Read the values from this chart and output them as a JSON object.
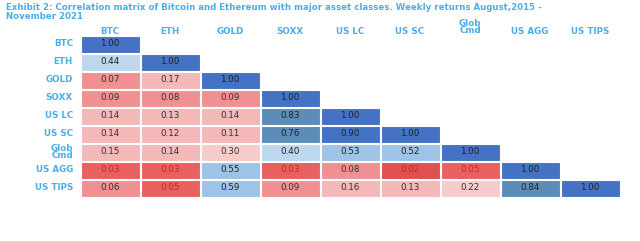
{
  "title_line1": "Exhibit 2: Correlation matrix of Bitcoin and Ethereum with major asset classes. Weekly returns August,2015 -",
  "title_line2": "November 2021",
  "title_color": "#4BAEE8",
  "col_labels": [
    "BTC",
    "ETH",
    "GOLD",
    "SOXX",
    "US LC",
    "US SC",
    "Glob\nCmd",
    "US AGG",
    "US TIPS"
  ],
  "row_labels": [
    "BTC",
    "ETH",
    "GOLD",
    "SOXX",
    "US LC",
    "US SC",
    "Glob\nCmd",
    "US AGG",
    "US TIPS"
  ],
  "matrix": [
    [
      1.0,
      null,
      null,
      null,
      null,
      null,
      null,
      null,
      null
    ],
    [
      0.44,
      1.0,
      null,
      null,
      null,
      null,
      null,
      null,
      null
    ],
    [
      0.07,
      0.17,
      1.0,
      null,
      null,
      null,
      null,
      null,
      null
    ],
    [
      0.09,
      0.08,
      0.09,
      1.0,
      null,
      null,
      null,
      null,
      null
    ],
    [
      0.14,
      0.13,
      0.14,
      0.83,
      1.0,
      null,
      null,
      null,
      null
    ],
    [
      0.14,
      0.12,
      0.11,
      0.76,
      0.9,
      1.0,
      null,
      null,
      null
    ],
    [
      0.15,
      0.14,
      0.3,
      0.4,
      0.53,
      0.52,
      1.0,
      null,
      null
    ],
    [
      0.03,
      0.03,
      0.55,
      0.03,
      0.08,
      0.02,
      0.05,
      1.0,
      null
    ],
    [
      0.06,
      0.05,
      0.59,
      0.09,
      0.16,
      0.13,
      0.22,
      0.84,
      1.0
    ]
  ],
  "header_color": "#4BAEE8",
  "background_color": "#FFFFFF",
  "fig_width": 6.4,
  "fig_height": 2.41,
  "dpi": 100
}
